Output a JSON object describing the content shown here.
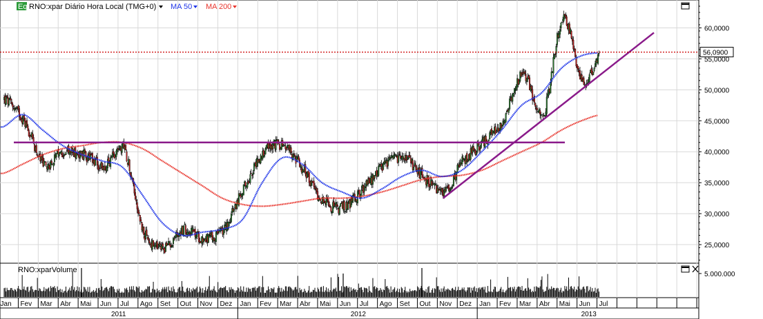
{
  "header": {
    "eq_badge": "Eq",
    "instrument": "RNO:xpar Diário Hora Local (TMG+0)",
    "ma50_label": "MA 50",
    "ma200_label": "MA 200",
    "volume_label": "RNO:xparVolume"
  },
  "colors": {
    "ma50": "#1f35e8",
    "ma200": "#e8342c",
    "trendline": "#8a1a8a",
    "price_marker": "#cc0000",
    "header_accent": "#2d9b3a"
  },
  "chart_data": [
    {
      "type": "line",
      "subtype": "candlestick_with_moving_averages",
      "title": "RNO:xpar Diário Hora Local (TMG+0)",
      "x_start": "2011-01",
      "x_end": "2013-07",
      "ylim": [
        22000,
        64500
      ],
      "y_scale": "linear",
      "y_ticks": [
        "25,0000",
        "30,0000",
        "35,0000",
        "40,0000",
        "45,0000",
        "50,0000",
        "55,0000",
        "60,0000"
      ],
      "y_tick_values": [
        25000,
        30000,
        35000,
        40000,
        45000,
        50000,
        55000,
        60000
      ],
      "last_price": 56090,
      "last_price_label": "56,0900",
      "grid": true,
      "series": [
        {
          "name": "RNO:xpar",
          "kind": "close",
          "x": [
            "2011-01",
            "2011-02",
            "2011-03",
            "2011-04",
            "2011-05",
            "2011-06",
            "2011-07",
            "2011-08",
            "2011-09",
            "2011-10",
            "2011-11",
            "2011-12",
            "2012-01",
            "2012-02",
            "2012-03",
            "2012-04",
            "2012-05",
            "2012-06",
            "2012-07",
            "2012-08",
            "2012-09",
            "2012-10",
            "2012-11",
            "2012-12",
            "2013-01",
            "2013-02",
            "2013-03",
            "2013-04",
            "2013-05",
            "2013-06",
            "2013-07"
          ],
          "values": [
            48500,
            45000,
            38000,
            40000,
            39500,
            37500,
            40500,
            27000,
            24500,
            27500,
            26000,
            27500,
            34000,
            40000,
            41000,
            37000,
            32000,
            31000,
            34000,
            37500,
            39000,
            36000,
            33500,
            38500,
            41500,
            45000,
            52500,
            46000,
            61500,
            51500,
            56090
          ]
        },
        {
          "name": "MA 50",
          "kind": "moving_average",
          "x": [
            "2011-01",
            "2011-02",
            "2011-03",
            "2011-04",
            "2011-05",
            "2011-06",
            "2011-07",
            "2011-08",
            "2011-09",
            "2011-10",
            "2011-11",
            "2011-12",
            "2012-01",
            "2012-02",
            "2012-03",
            "2012-04",
            "2012-05",
            "2012-06",
            "2012-07",
            "2012-08",
            "2012-09",
            "2012-10",
            "2012-11",
            "2012-12",
            "2013-01",
            "2013-02",
            "2013-03",
            "2013-04",
            "2013-05",
            "2013-06",
            "2013-07"
          ],
          "values": [
            44000,
            46000,
            43500,
            41000,
            39500,
            38500,
            37500,
            33000,
            28500,
            26500,
            27000,
            27500,
            29000,
            35000,
            39000,
            38000,
            35000,
            33500,
            32500,
            34000,
            36000,
            37000,
            36000,
            37000,
            40000,
            43500,
            47500,
            49500,
            53500,
            55500,
            56000
          ]
        },
        {
          "name": "MA 200",
          "kind": "moving_average",
          "x": [
            "2011-01",
            "2011-02",
            "2011-03",
            "2011-04",
            "2011-05",
            "2011-06",
            "2011-07",
            "2011-08",
            "2011-09",
            "2011-10",
            "2011-11",
            "2011-12",
            "2012-01",
            "2012-02",
            "2012-03",
            "2012-04",
            "2012-05",
            "2012-06",
            "2012-07",
            "2012-08",
            "2012-09",
            "2012-10",
            "2012-11",
            "2012-12",
            "2013-01",
            "2013-02",
            "2013-03",
            "2013-04",
            "2013-05",
            "2013-06",
            "2013-07"
          ],
          "values": [
            36500,
            38000,
            39500,
            40500,
            41000,
            41500,
            41500,
            40500,
            38500,
            36500,
            34500,
            32500,
            31500,
            31200,
            31500,
            32000,
            32500,
            32500,
            32800,
            33500,
            34500,
            35500,
            36000,
            36200,
            37000,
            38500,
            40000,
            41500,
            43500,
            45000,
            46000
          ]
        }
      ],
      "annotations": [
        {
          "kind": "horizontal_line",
          "value": 41500,
          "from": "2011-01",
          "to": "2013-04"
        },
        {
          "kind": "trendline",
          "from": [
            "2012-11",
            32500
          ],
          "to": [
            "2013-07",
            59000
          ]
        },
        {
          "kind": "horizontal_dotted_line",
          "value": 56090
        }
      ]
    },
    {
      "type": "bar",
      "title": "RNO:xparVolume",
      "y_ticks": [
        "5.000.000"
      ],
      "y_tick_values": [
        5000000
      ],
      "x_months": [
        "Jan",
        "Fev",
        "Mar",
        "Abr",
        "Mai",
        "Jun",
        "Jul",
        "Ago",
        "Set",
        "Out",
        "Nov",
        "Dez",
        "Jan",
        "Fev",
        "Mar",
        "Abr",
        "Mai",
        "Jun",
        "Jul",
        "Ago",
        "Set",
        "Out",
        "Nov",
        "Dez",
        "Jan",
        "Fev",
        "Mar",
        "Abr",
        "Mai",
        "Jun",
        "Jul"
      ],
      "x_years": [
        "2011",
        "2012",
        "2013"
      ]
    }
  ]
}
